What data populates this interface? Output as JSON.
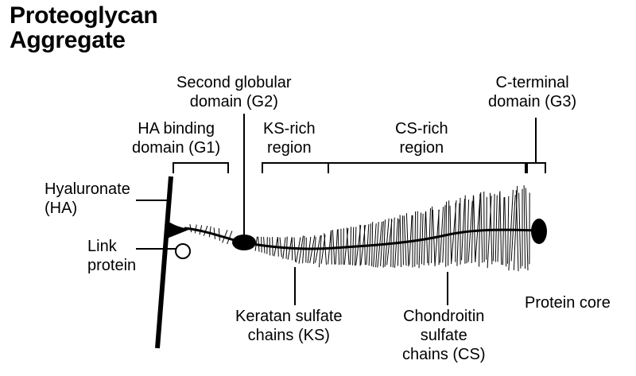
{
  "title": {
    "line1": "Proteoglycan",
    "line2": "Aggregate"
  },
  "labels": {
    "g2": [
      "Second globular",
      "domain (G2)"
    ],
    "g3": [
      "C-terminal",
      "domain (G3)"
    ],
    "g1": [
      "HA binding",
      "domain (G1)"
    ],
    "ks_region": [
      "KS-rich",
      "region"
    ],
    "cs_region": [
      "CS-rich",
      "region"
    ],
    "ha": [
      "Hyaluronate",
      "(HA)"
    ],
    "link": [
      "Link",
      "protein"
    ],
    "ks_chains": [
      "Keratan sulfate",
      "chains (KS)"
    ],
    "cs_chains": [
      "Chondroitin",
      "sulfate",
      "chains (CS)"
    ],
    "core": [
      "Protein core"
    ]
  }
}
